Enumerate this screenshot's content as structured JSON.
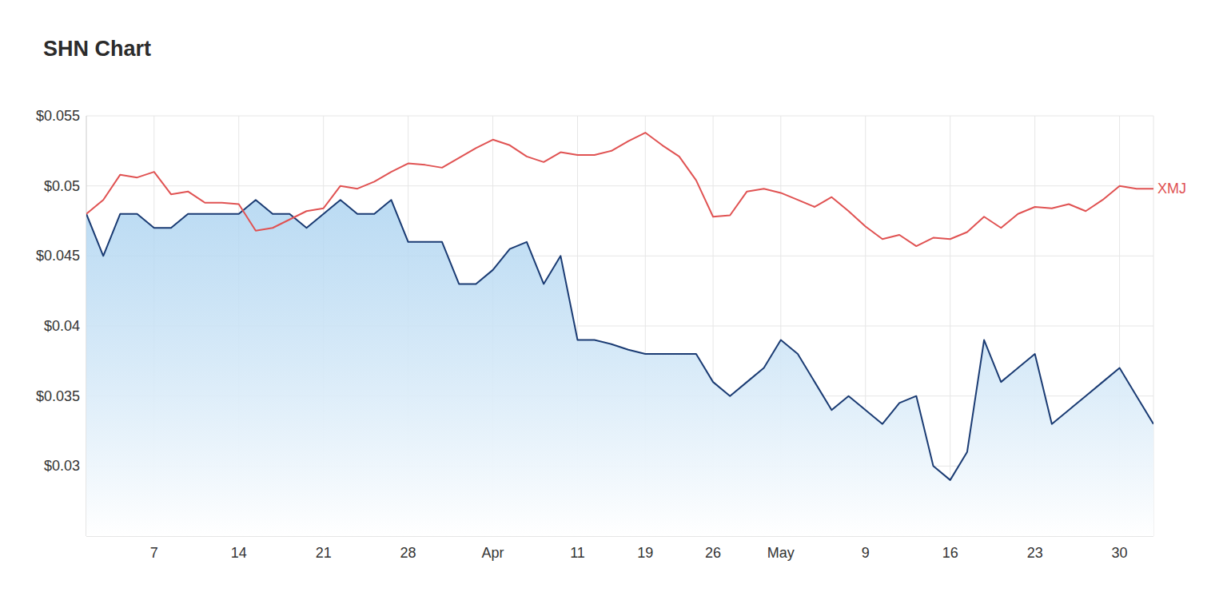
{
  "chart_data": {
    "type": "line",
    "title": "SHN Chart",
    "categories": [
      null,
      null,
      null,
      null,
      "7",
      null,
      null,
      null,
      null,
      "14",
      null,
      null,
      null,
      null,
      "21",
      null,
      null,
      null,
      null,
      "28",
      null,
      null,
      null,
      null,
      "Apr",
      null,
      null,
      null,
      null,
      "11",
      null,
      null,
      null,
      "19",
      null,
      null,
      null,
      "26",
      null,
      null,
      null,
      "May",
      null,
      null,
      null,
      null,
      "9",
      null,
      null,
      null,
      null,
      "16",
      null,
      null,
      null,
      null,
      "23",
      null,
      null,
      null,
      null,
      "30",
      null,
      null
    ],
    "series": [
      {
        "type": "area",
        "color": "#1a3b73",
        "values": [
          0.048,
          0.045,
          0.048,
          0.048,
          0.047,
          0.047,
          0.048,
          0.048,
          0.048,
          0.048,
          0.049,
          0.048,
          0.048,
          0.047,
          0.048,
          0.049,
          0.048,
          0.048,
          0.049,
          0.046,
          0.046,
          0.046,
          0.043,
          0.043,
          0.044,
          0.0455,
          0.046,
          0.043,
          0.045,
          0.039,
          0.039,
          0.0387,
          0.0383,
          0.038,
          0.038,
          0.038,
          0.038,
          0.036,
          0.035,
          0.036,
          0.037,
          0.039,
          0.038,
          0.036,
          0.034,
          0.035,
          0.034,
          0.033,
          0.0345,
          0.035,
          0.03,
          0.029,
          0.031,
          0.039,
          0.036,
          0.037,
          0.038,
          0.033,
          0.034,
          0.035,
          0.036,
          0.037,
          0.035,
          0.033
        ]
      },
      {
        "name": "XMJ",
        "type": "line",
        "color": "#e05252",
        "values": [
          0.048,
          0.049,
          0.0508,
          0.0506,
          0.051,
          0.0494,
          0.0496,
          0.0488,
          0.0488,
          0.0487,
          0.0468,
          0.047,
          0.0476,
          0.0482,
          0.0484,
          0.05,
          0.0498,
          0.0503,
          0.051,
          0.0516,
          0.0515,
          0.0513,
          0.052,
          0.0527,
          0.0533,
          0.0529,
          0.0521,
          0.0517,
          0.0524,
          0.0522,
          0.0522,
          0.0525,
          0.0532,
          0.0538,
          0.0529,
          0.0521,
          0.0504,
          0.0478,
          0.0479,
          0.0496,
          0.0498,
          0.0495,
          0.049,
          0.0485,
          0.0492,
          0.0482,
          0.0471,
          0.0462,
          0.0465,
          0.0457,
          0.0463,
          0.0462,
          0.0467,
          0.0478,
          0.047,
          0.048,
          0.0485,
          0.0484,
          0.0487,
          0.0482,
          0.049,
          0.05,
          0.0498,
          0.0498
        ]
      }
    ],
    "ylim": [
      0.025,
      0.055
    ],
    "yticks": [
      {
        "value": 0.03,
        "label": "$0.03"
      },
      {
        "value": 0.035,
        "label": "$0.035"
      },
      {
        "value": 0.04,
        "label": "$0.04"
      },
      {
        "value": 0.045,
        "label": "$0.045"
      },
      {
        "value": 0.05,
        "label": "$0.05"
      },
      {
        "value": 0.055,
        "label": "$0.055"
      }
    ],
    "grid": true
  }
}
